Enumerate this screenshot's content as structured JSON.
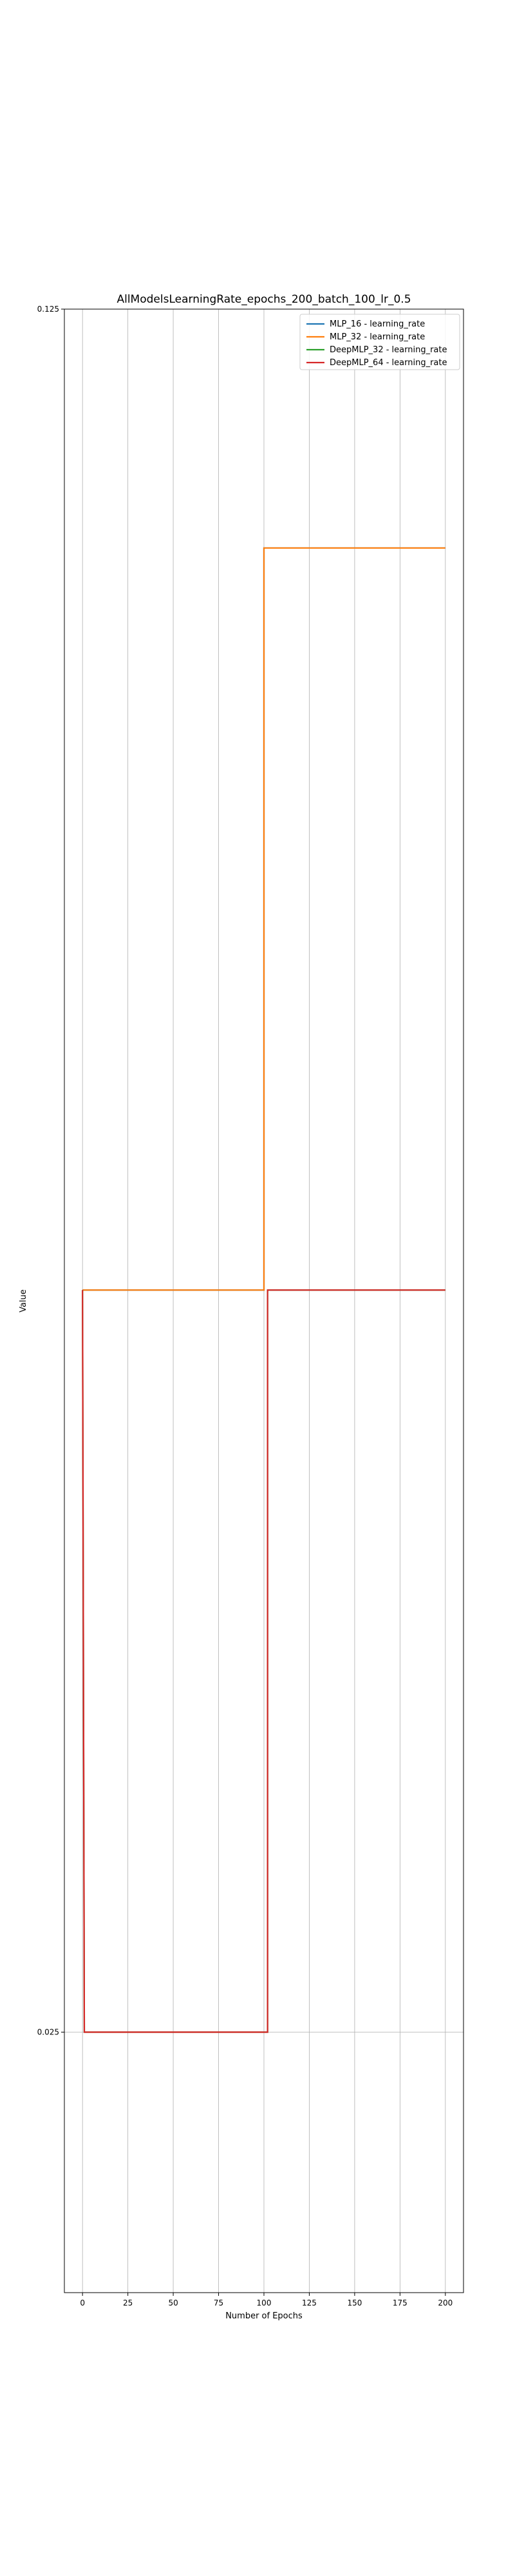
{
  "chart_data": {
    "type": "line",
    "title": "AllModelsLearningRate_epochs_200_batch_100_lr_0.5",
    "xlabel": "Number of Epochs",
    "ylabel": "Value",
    "xlim": [
      -10,
      210
    ],
    "ylim": [
      0.0196,
      0.125
    ],
    "y_scale": "log",
    "x_ticks": [
      0,
      25,
      50,
      75,
      100,
      125,
      150,
      175,
      200
    ],
    "y_ticks": [
      0.025,
      0.125
    ],
    "y_tick_labels": [
      "0.025",
      "0.125"
    ],
    "grid": "x-major; y-major",
    "legend_position": "top-right",
    "series": [
      {
        "name": "MLP_16 - learning_rate",
        "color": "#1f77b4",
        "x": [
          0,
          100,
          100,
          200
        ],
        "y": [
          0.05,
          0.05,
          0.1,
          0.1
        ]
      },
      {
        "name": "MLP_32 - learning_rate",
        "color": "#ff7f0e",
        "x": [
          0,
          100,
          100,
          200
        ],
        "y": [
          0.05,
          0.05,
          0.1,
          0.1
        ]
      },
      {
        "name": "DeepMLP_32 - learning_rate",
        "color": "#2ca02c",
        "x": [
          0,
          0,
          1,
          101,
          101,
          102,
          102,
          200
        ],
        "y": [
          0.05,
          0.05,
          0.025,
          0.025,
          0.025,
          0.025,
          0.05,
          0.05
        ]
      },
      {
        "name": "DeepMLP_64 - learning_rate",
        "color": "#d62728",
        "x": [
          0,
          0,
          1,
          101,
          101,
          102,
          102,
          200
        ],
        "y": [
          0.05,
          0.05,
          0.025,
          0.025,
          0.025,
          0.025,
          0.05,
          0.05
        ]
      }
    ]
  }
}
